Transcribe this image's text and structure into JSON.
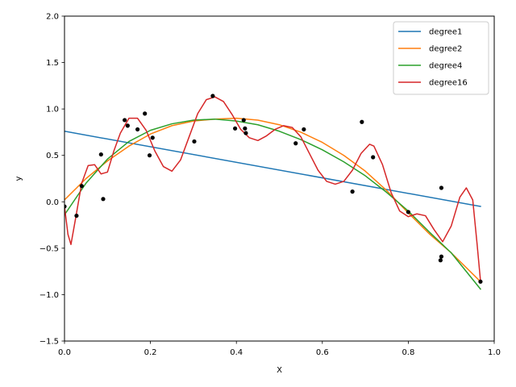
{
  "chart_data": {
    "type": "line",
    "title": "",
    "xlabel": "X",
    "ylabel": "y",
    "xlim": [
      0.0,
      1.0
    ],
    "ylim": [
      -1.5,
      2.0
    ],
    "xticks": [
      "0.0",
      "0.2",
      "0.4",
      "0.6",
      "0.8",
      "1.0"
    ],
    "yticks": [
      "−1.5",
      "−1.0",
      "−0.5",
      "0.0",
      "0.5",
      "1.0",
      "1.5",
      "2.0"
    ],
    "grid": false,
    "legend_position": "top-right",
    "scatter": {
      "color": "#000000",
      "points": [
        [
          0.0,
          -0.05
        ],
        [
          0.028,
          -0.15
        ],
        [
          0.04,
          0.17
        ],
        [
          0.085,
          0.51
        ],
        [
          0.09,
          0.03
        ],
        [
          0.14,
          0.88
        ],
        [
          0.147,
          0.82
        ],
        [
          0.17,
          0.78
        ],
        [
          0.187,
          0.95
        ],
        [
          0.198,
          0.5
        ],
        [
          0.205,
          0.69
        ],
        [
          0.302,
          0.65
        ],
        [
          0.345,
          1.14
        ],
        [
          0.397,
          0.79
        ],
        [
          0.417,
          0.88
        ],
        [
          0.42,
          0.79
        ],
        [
          0.422,
          0.74
        ],
        [
          0.538,
          0.63
        ],
        [
          0.557,
          0.78
        ],
        [
          0.67,
          0.11
        ],
        [
          0.692,
          0.86
        ],
        [
          0.718,
          0.48
        ],
        [
          0.8,
          -0.11
        ],
        [
          0.875,
          -0.63
        ],
        [
          0.877,
          -0.59
        ],
        [
          0.877,
          0.15
        ],
        [
          0.968,
          -0.86
        ]
      ]
    },
    "series": [
      {
        "name": "degree1",
        "color": "#1f77b4",
        "x": [
          0.0,
          0.968
        ],
        "y": [
          0.76,
          -0.05
        ]
      },
      {
        "name": "degree2",
        "color": "#ff7f0e",
        "x": [
          0.0,
          0.05,
          0.1,
          0.15,
          0.2,
          0.25,
          0.3,
          0.35,
          0.4,
          0.45,
          0.5,
          0.55,
          0.6,
          0.65,
          0.7,
          0.75,
          0.8,
          0.85,
          0.9,
          0.968
        ],
        "y": [
          0.02,
          0.25,
          0.44,
          0.6,
          0.73,
          0.82,
          0.87,
          0.89,
          0.9,
          0.88,
          0.83,
          0.75,
          0.64,
          0.5,
          0.33,
          0.12,
          -0.12,
          -0.35,
          -0.55,
          -0.86
        ]
      },
      {
        "name": "degree4",
        "color": "#2ca02c",
        "x": [
          0.0,
          0.05,
          0.1,
          0.15,
          0.2,
          0.25,
          0.3,
          0.35,
          0.4,
          0.45,
          0.5,
          0.55,
          0.6,
          0.65,
          0.7,
          0.75,
          0.8,
          0.85,
          0.9,
          0.968
        ],
        "y": [
          -0.14,
          0.2,
          0.46,
          0.65,
          0.77,
          0.84,
          0.88,
          0.89,
          0.87,
          0.83,
          0.76,
          0.67,
          0.56,
          0.43,
          0.28,
          0.1,
          -0.1,
          -0.33,
          -0.55,
          -0.94
        ]
      },
      {
        "name": "degree16",
        "color": "#d62728",
        "x": [
          0.0,
          0.008,
          0.015,
          0.025,
          0.04,
          0.055,
          0.07,
          0.085,
          0.1,
          0.115,
          0.13,
          0.15,
          0.17,
          0.19,
          0.21,
          0.23,
          0.25,
          0.27,
          0.29,
          0.31,
          0.33,
          0.35,
          0.37,
          0.39,
          0.41,
          0.43,
          0.45,
          0.47,
          0.49,
          0.51,
          0.53,
          0.55,
          0.57,
          0.59,
          0.61,
          0.63,
          0.65,
          0.67,
          0.69,
          0.71,
          0.72,
          0.74,
          0.76,
          0.78,
          0.8,
          0.82,
          0.84,
          0.86,
          0.88,
          0.9,
          0.92,
          0.935,
          0.95,
          0.96,
          0.968
        ],
        "y": [
          -0.05,
          -0.35,
          -0.46,
          -0.2,
          0.2,
          0.39,
          0.4,
          0.3,
          0.32,
          0.55,
          0.74,
          0.9,
          0.9,
          0.77,
          0.55,
          0.38,
          0.33,
          0.45,
          0.7,
          0.95,
          1.1,
          1.13,
          1.08,
          0.94,
          0.78,
          0.69,
          0.66,
          0.71,
          0.78,
          0.82,
          0.8,
          0.7,
          0.52,
          0.34,
          0.22,
          0.19,
          0.22,
          0.34,
          0.52,
          0.62,
          0.6,
          0.4,
          0.1,
          -0.1,
          -0.16,
          -0.13,
          -0.15,
          -0.3,
          -0.43,
          -0.26,
          0.05,
          0.15,
          0.02,
          -0.45,
          -0.85
        ]
      }
    ]
  }
}
